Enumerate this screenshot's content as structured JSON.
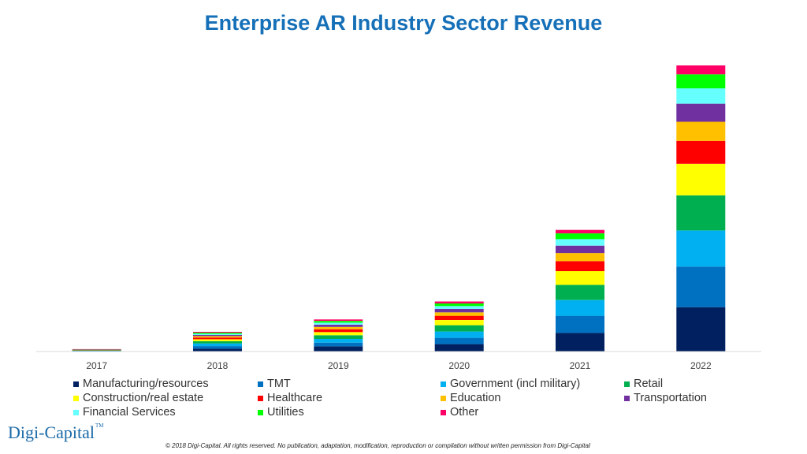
{
  "chart_data": {
    "type": "bar",
    "stacked": true,
    "title": "Enterprise AR Industry Sector Revenue",
    "xlabel": "",
    "ylabel": "",
    "ylim": [
      0,
      100
    ],
    "grid": false,
    "legend_position": "bottom",
    "categories": [
      "2017",
      "2018",
      "2019",
      "2020",
      "2021",
      "2022"
    ],
    "series": [
      {
        "name": "Manufacturing/resources",
        "color": "#002060",
        "values": [
          0.15,
          1.0,
          1.8,
          2.6,
          6.5,
          15.5
        ]
      },
      {
        "name": "TMT",
        "color": "#0070c0",
        "values": [
          0.1,
          0.9,
          1.3,
          2.2,
          6.0,
          14.2
        ]
      },
      {
        "name": "Government (incl military)",
        "color": "#00b0f0",
        "values": [
          0.1,
          0.9,
          1.3,
          2.2,
          5.5,
          12.6
        ]
      },
      {
        "name": "Retail",
        "color": "#00b050",
        "values": [
          0.1,
          0.8,
          1.3,
          2.2,
          5.3,
          12.3
        ]
      },
      {
        "name": "Construction/real estate",
        "color": "#ffff00",
        "values": [
          0.1,
          0.7,
          1.1,
          1.8,
          4.8,
          11.0
        ]
      },
      {
        "name": "Healthcare",
        "color": "#ff0000",
        "values": [
          0.05,
          0.6,
          1.0,
          1.5,
          3.5,
          8.0
        ]
      },
      {
        "name": "Education",
        "color": "#ffc000",
        "values": [
          0.05,
          0.5,
          0.8,
          1.2,
          2.8,
          6.7
        ]
      },
      {
        "name": "Transportation",
        "color": "#7030a0",
        "values": [
          0.05,
          0.4,
          0.8,
          1.2,
          2.6,
          6.3
        ]
      },
      {
        "name": "Financial Services",
        "color": "#66ffff",
        "values": [
          0.05,
          0.4,
          0.7,
          1.0,
          2.3,
          5.4
        ]
      },
      {
        "name": "Utilities",
        "color": "#00ff00",
        "values": [
          0.05,
          0.4,
          0.6,
          0.9,
          2.0,
          4.9
        ]
      },
      {
        "name": "Other",
        "color": "#ff0066",
        "values": [
          0.05,
          0.3,
          0.5,
          0.7,
          1.2,
          3.1
        ]
      }
    ]
  },
  "logo_text": "Digi-Capital",
  "logo_tm": "TM",
  "copyright": "© 2018 Digi-Capital. All rights reserved. No publication, adaptation, modification, reproduction or compilation without written permission from Digi-Capital"
}
